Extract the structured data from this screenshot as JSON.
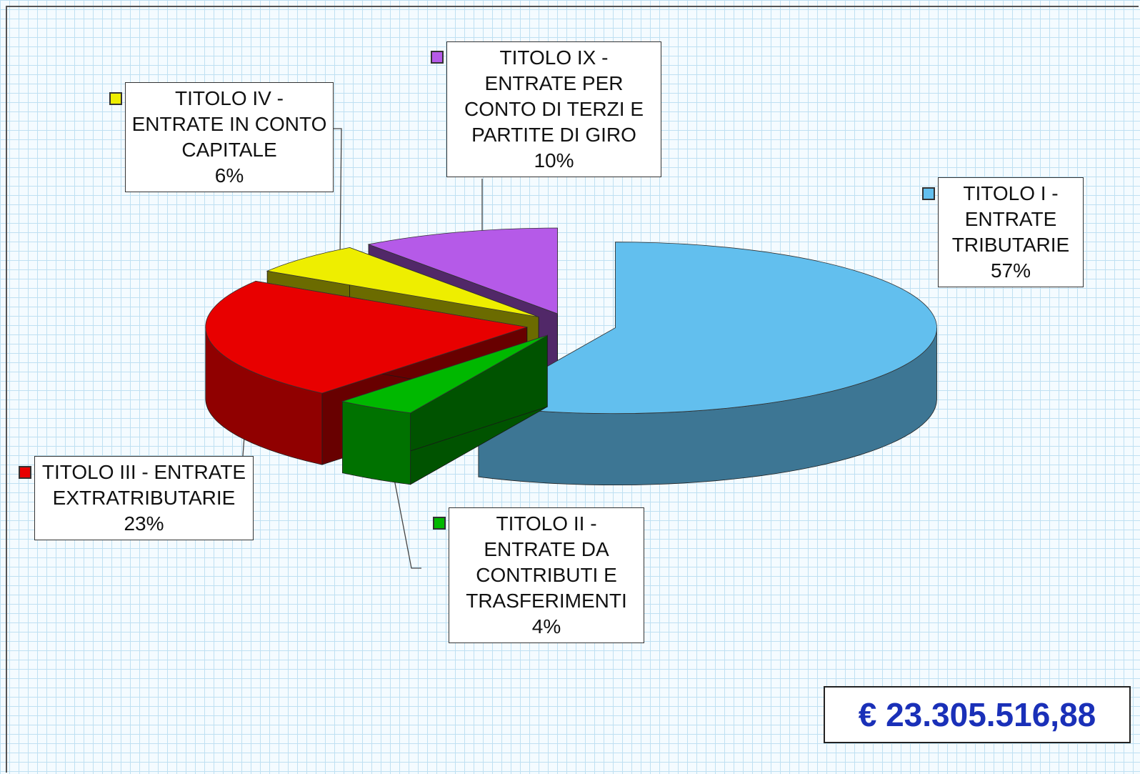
{
  "chart_data": {
    "type": "pie",
    "categories": [
      "TITOLO I - ENTRATE TRIBUTARIE",
      "TITOLO II - ENTRATE DA CONTRIBUTI E TRASFERIMENTI",
      "TITOLO III - ENTRATE EXTRATRIBUTARIE",
      "TITOLO IV - ENTRATE IN CONTO CAPITALE",
      "TITOLO IX - ENTRATE PER CONTO DI TERZI E PARTITE DI GIRO"
    ],
    "values": [
      57,
      4,
      23,
      6,
      10
    ],
    "value_labels": [
      "57%",
      "4%",
      "23%",
      "6%",
      "10%"
    ],
    "colors": [
      "#62bfee",
      "#00b800",
      "#e80000",
      "#eeee00",
      "#b55ae8"
    ],
    "annotation": "€ 23.305.516,88"
  }
}
